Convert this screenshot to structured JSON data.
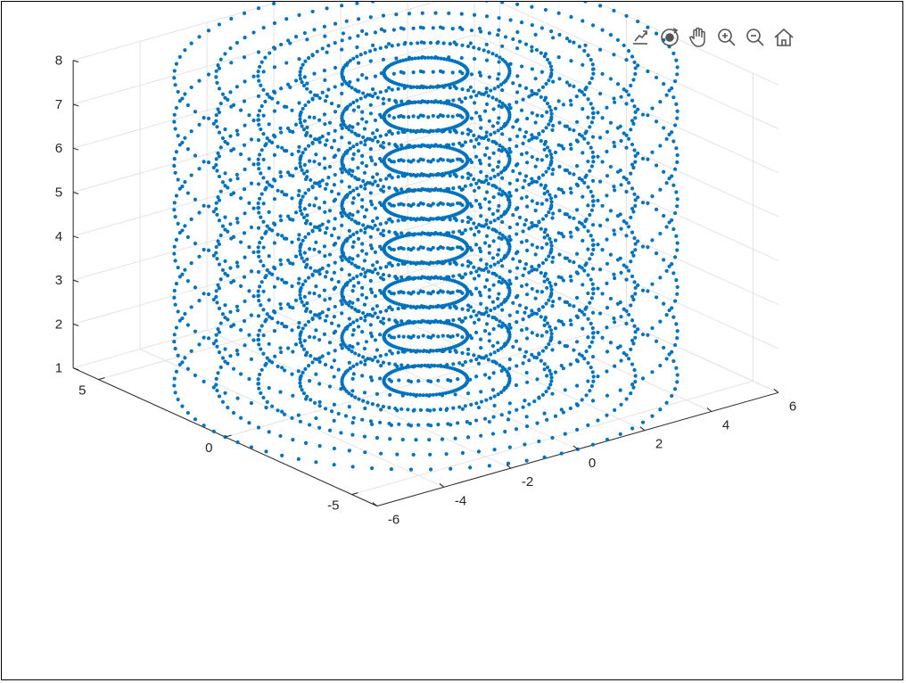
{
  "toolbar": {
    "buttons": [
      {
        "name": "export-button",
        "icon": "export-icon"
      },
      {
        "name": "rotate-3d-button",
        "icon": "rotate-3d-icon"
      },
      {
        "name": "pan-button",
        "icon": "hand-pan-icon"
      },
      {
        "name": "zoom-in-button",
        "icon": "zoom-in-icon"
      },
      {
        "name": "zoom-out-button",
        "icon": "zoom-out-icon"
      },
      {
        "name": "restore-view-button",
        "icon": "home-icon"
      }
    ]
  },
  "chart_data": {
    "type": "scatter",
    "projection": "3d",
    "title": "",
    "xlabel": "",
    "ylabel": "",
    "zlabel": "",
    "xlim": [
      -6,
      6
    ],
    "ylim": [
      -6,
      6
    ],
    "zlim": [
      1,
      8
    ],
    "x_ticks": [
      "-6",
      "-4",
      "-2",
      "0",
      "2",
      "4",
      "6"
    ],
    "y_ticks": [
      "-5",
      "0",
      "5"
    ],
    "z_ticks": [
      "1",
      "2",
      "3",
      "4",
      "5",
      "6",
      "7",
      "8"
    ],
    "grid": true,
    "box": false,
    "marker": "dot",
    "marker_color": "#0072BD",
    "series": [
      {
        "z_levels": [
          1,
          2,
          3,
          4,
          5,
          6,
          7,
          8
        ],
        "radii": [
          1,
          2,
          3,
          4,
          5,
          6
        ],
        "points_per_ring": 80,
        "description_of_points": "x = r*cos(t), y = r*sin(t) for each radius r and each z level"
      }
    ]
  }
}
